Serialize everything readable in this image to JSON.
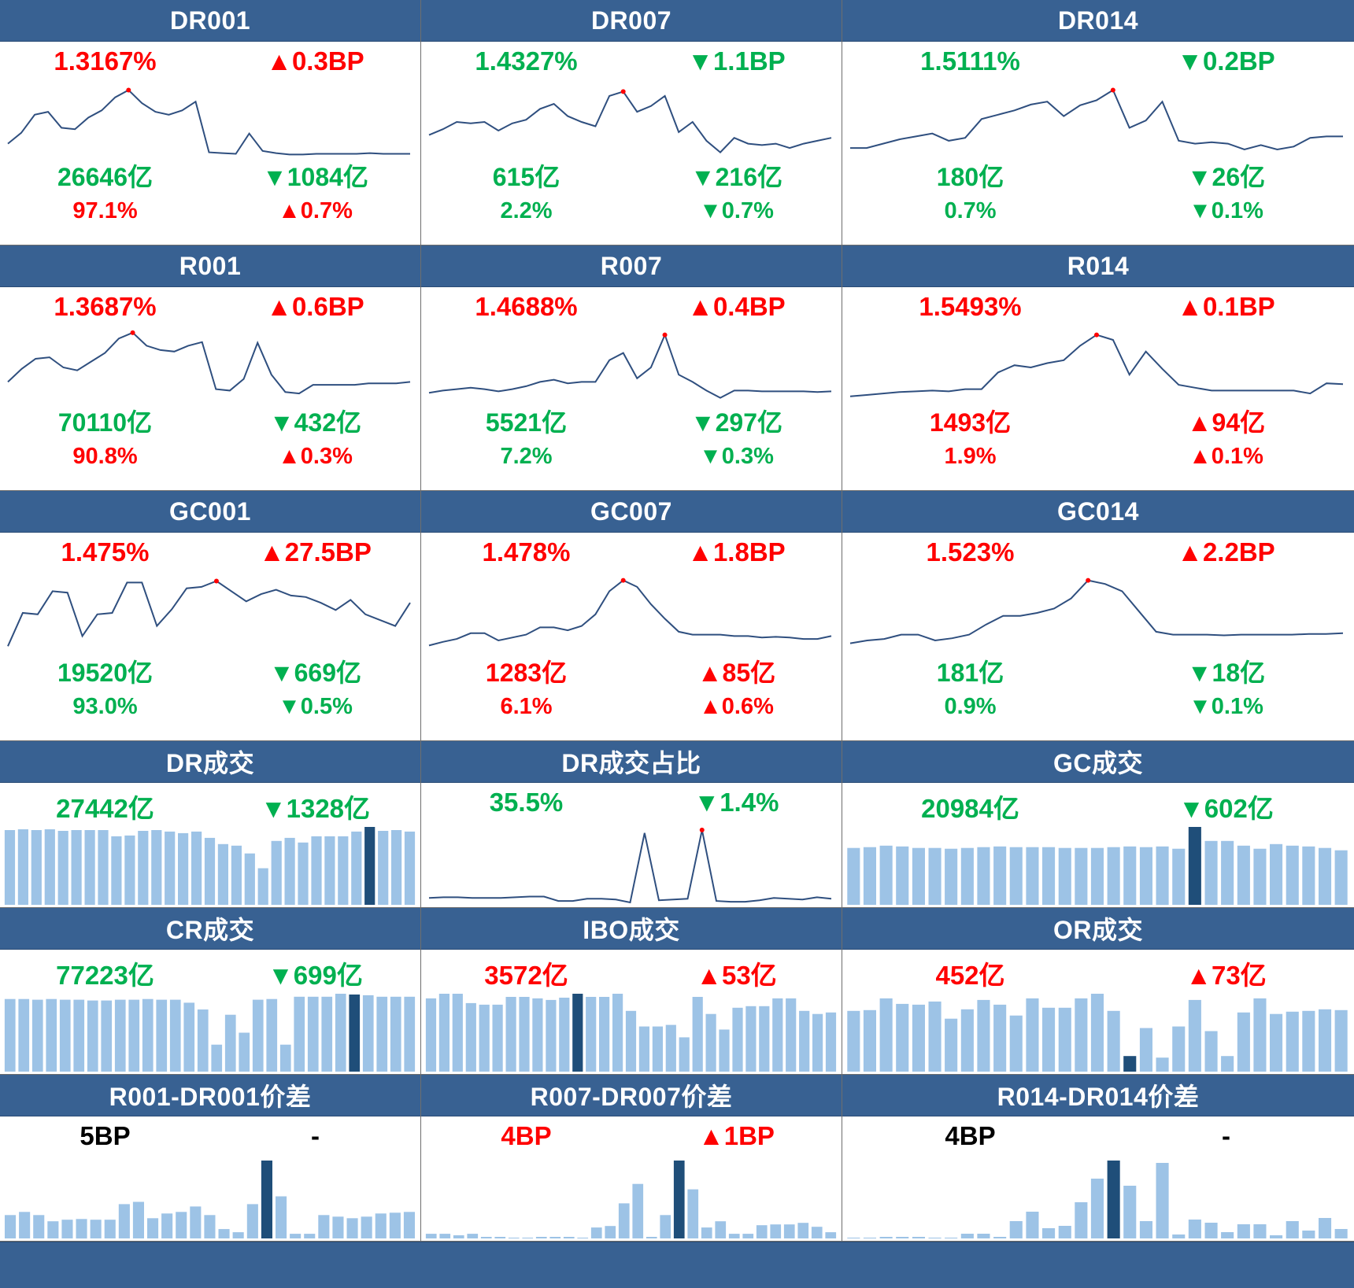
{
  "colors": {
    "header_bg": "#386192",
    "up": "#ff0000",
    "down": "#00b050",
    "line": "#2f4f7f",
    "bar": "#9dc3e6",
    "bar_highlight": "#1f4e79"
  },
  "panels": [
    {
      "id": "dr001",
      "title": "DR001",
      "kind": "rate",
      "rate": {
        "value": "1.3167%",
        "dir": "up"
      },
      "rate_chg": {
        "value": "▲0.3BP",
        "dir": "up"
      },
      "vol": {
        "value": "26646亿",
        "dir": "down"
      },
      "vol_chg": {
        "value": "▼1084亿",
        "dir": "down"
      },
      "share": {
        "value": "97.1%",
        "dir": "up"
      },
      "share_chg": {
        "value": "▲0.7%",
        "dir": "up"
      }
    },
    {
      "id": "dr007",
      "title": "DR007",
      "kind": "rate",
      "rate": {
        "value": "1.4327%",
        "dir": "down"
      },
      "rate_chg": {
        "value": "▼1.1BP",
        "dir": "down"
      },
      "vol": {
        "value": "615亿",
        "dir": "down"
      },
      "vol_chg": {
        "value": "▼216亿",
        "dir": "down"
      },
      "share": {
        "value": "2.2%",
        "dir": "down"
      },
      "share_chg": {
        "value": "▼0.7%",
        "dir": "down"
      }
    },
    {
      "id": "dr014",
      "title": "DR014",
      "kind": "rate",
      "rate": {
        "value": "1.5111%",
        "dir": "down"
      },
      "rate_chg": {
        "value": "▼0.2BP",
        "dir": "down"
      },
      "vol": {
        "value": "180亿",
        "dir": "down"
      },
      "vol_chg": {
        "value": "▼26亿",
        "dir": "down"
      },
      "share": {
        "value": "0.7%",
        "dir": "down"
      },
      "share_chg": {
        "value": "▼0.1%",
        "dir": "down"
      }
    },
    {
      "id": "r001",
      "title": "R001",
      "kind": "rate",
      "rate": {
        "value": "1.3687%",
        "dir": "up"
      },
      "rate_chg": {
        "value": "▲0.6BP",
        "dir": "up"
      },
      "vol": {
        "value": "70110亿",
        "dir": "down"
      },
      "vol_chg": {
        "value": "▼432亿",
        "dir": "down"
      },
      "share": {
        "value": "90.8%",
        "dir": "up"
      },
      "share_chg": {
        "value": "▲0.3%",
        "dir": "up"
      }
    },
    {
      "id": "r007",
      "title": "R007",
      "kind": "rate",
      "rate": {
        "value": "1.4688%",
        "dir": "up"
      },
      "rate_chg": {
        "value": "▲0.4BP",
        "dir": "up"
      },
      "vol": {
        "value": "5521亿",
        "dir": "down"
      },
      "vol_chg": {
        "value": "▼297亿",
        "dir": "down"
      },
      "share": {
        "value": "7.2%",
        "dir": "down"
      },
      "share_chg": {
        "value": "▼0.3%",
        "dir": "down"
      }
    },
    {
      "id": "r014",
      "title": "R014",
      "kind": "rate",
      "rate": {
        "value": "1.5493%",
        "dir": "up"
      },
      "rate_chg": {
        "value": "▲0.1BP",
        "dir": "up"
      },
      "vol": {
        "value": "1493亿",
        "dir": "up"
      },
      "vol_chg": {
        "value": "▲94亿",
        "dir": "up"
      },
      "share": {
        "value": "1.9%",
        "dir": "up"
      },
      "share_chg": {
        "value": "▲0.1%",
        "dir": "up"
      }
    },
    {
      "id": "gc001",
      "title": "GC001",
      "kind": "rate",
      "rate": {
        "value": "1.475%",
        "dir": "up"
      },
      "rate_chg": {
        "value": "▲27.5BP",
        "dir": "up"
      },
      "vol": {
        "value": "19520亿",
        "dir": "down"
      },
      "vol_chg": {
        "value": "▼669亿",
        "dir": "down"
      },
      "share": {
        "value": "93.0%",
        "dir": "down"
      },
      "share_chg": {
        "value": "▼0.5%",
        "dir": "down"
      }
    },
    {
      "id": "gc007",
      "title": "GC007",
      "kind": "rate",
      "rate": {
        "value": "1.478%",
        "dir": "up"
      },
      "rate_chg": {
        "value": "▲1.8BP",
        "dir": "up"
      },
      "vol": {
        "value": "1283亿",
        "dir": "up"
      },
      "vol_chg": {
        "value": "▲85亿",
        "dir": "up"
      },
      "share": {
        "value": "6.1%",
        "dir": "up"
      },
      "share_chg": {
        "value": "▲0.6%",
        "dir": "up"
      }
    },
    {
      "id": "gc014",
      "title": "GC014",
      "kind": "rate",
      "rate": {
        "value": "1.523%",
        "dir": "up"
      },
      "rate_chg": {
        "value": "▲2.2BP",
        "dir": "up"
      },
      "vol": {
        "value": "181亿",
        "dir": "down"
      },
      "vol_chg": {
        "value": "▼18亿",
        "dir": "down"
      },
      "share": {
        "value": "0.9%",
        "dir": "down"
      },
      "share_chg": {
        "value": "▼0.1%",
        "dir": "down"
      }
    },
    {
      "id": "dr_vol",
      "title": "DR成交",
      "kind": "bar",
      "main": {
        "value": "27442亿",
        "dir": "down"
      },
      "chg": {
        "value": "▼1328亿",
        "dir": "down"
      }
    },
    {
      "id": "dr_share",
      "title": "DR成交占比",
      "kind": "line",
      "main": {
        "value": "35.5%",
        "dir": "down"
      },
      "chg": {
        "value": "▼1.4%",
        "dir": "down"
      }
    },
    {
      "id": "gc_vol",
      "title": "GC成交",
      "kind": "bar",
      "main": {
        "value": "20984亿",
        "dir": "down"
      },
      "chg": {
        "value": "▼602亿",
        "dir": "down"
      }
    },
    {
      "id": "cr_vol",
      "title": "CR成交",
      "kind": "bar",
      "main": {
        "value": "77223亿",
        "dir": "down"
      },
      "chg": {
        "value": "▼699亿",
        "dir": "down"
      }
    },
    {
      "id": "ibo_vol",
      "title": "IBO成交",
      "kind": "bar",
      "main": {
        "value": "3572亿",
        "dir": "up"
      },
      "chg": {
        "value": "▲53亿",
        "dir": "up"
      }
    },
    {
      "id": "or_vol",
      "title": "OR成交",
      "kind": "bar",
      "main": {
        "value": "452亿",
        "dir": "up"
      },
      "chg": {
        "value": "▲73亿",
        "dir": "up"
      }
    },
    {
      "id": "spread1",
      "title": "R001-DR001价差",
      "kind": "bar",
      "main": {
        "value": "5BP",
        "dir": "flat"
      },
      "chg": {
        "value": "-",
        "dir": "flat"
      }
    },
    {
      "id": "spread7",
      "title": "R007-DR007价差",
      "kind": "bar",
      "main": {
        "value": "4BP",
        "dir": "up"
      },
      "chg": {
        "value": "▲1BP",
        "dir": "up"
      }
    },
    {
      "id": "spread14",
      "title": "R014-DR014价差",
      "kind": "bar",
      "main": {
        "value": "4BP",
        "dir": "flat"
      },
      "chg": {
        "value": "-",
        "dir": "flat"
      }
    }
  ],
  "chart_data": [
    {
      "panel": "dr001",
      "type": "line",
      "values": [
        0.2,
        0.35,
        0.6,
        0.64,
        0.42,
        0.4,
        0.56,
        0.66,
        0.84,
        0.94,
        0.76,
        0.64,
        0.6,
        0.66,
        0.78,
        0.08,
        0.07,
        0.06,
        0.34,
        0.1,
        0.07,
        0.05,
        0.05,
        0.06,
        0.06,
        0.06,
        0.06,
        0.07,
        0.06,
        0.06,
        0.06
      ],
      "peak_index": 9
    },
    {
      "panel": "dr007",
      "type": "line",
      "values": [
        0.32,
        0.4,
        0.5,
        0.48,
        0.5,
        0.38,
        0.48,
        0.53,
        0.68,
        0.75,
        0.58,
        0.5,
        0.44,
        0.86,
        0.92,
        0.64,
        0.72,
        0.86,
        0.36,
        0.5,
        0.24,
        0.08,
        0.28,
        0.2,
        0.18,
        0.2,
        0.14,
        0.2,
        0.24,
        0.28
      ],
      "peak_index": 14
    },
    {
      "panel": "dr014",
      "type": "line",
      "values": [
        0.14,
        0.14,
        0.2,
        0.26,
        0.3,
        0.34,
        0.24,
        0.28,
        0.54,
        0.6,
        0.66,
        0.74,
        0.78,
        0.58,
        0.73,
        0.8,
        0.94,
        0.42,
        0.52,
        0.78,
        0.24,
        0.2,
        0.22,
        0.2,
        0.12,
        0.18,
        0.12,
        0.16,
        0.28,
        0.3,
        0.3
      ],
      "peak_index": 16
    },
    {
      "panel": "r001",
      "type": "line",
      "values": [
        0.3,
        0.48,
        0.62,
        0.64,
        0.5,
        0.46,
        0.58,
        0.7,
        0.9,
        0.98,
        0.8,
        0.74,
        0.72,
        0.8,
        0.85,
        0.2,
        0.18,
        0.34,
        0.84,
        0.4,
        0.16,
        0.14,
        0.26,
        0.26,
        0.26,
        0.26,
        0.28,
        0.28,
        0.28,
        0.3
      ],
      "peak_index": 9
    },
    {
      "panel": "r007",
      "type": "line",
      "values": [
        0.15,
        0.18,
        0.2,
        0.22,
        0.2,
        0.17,
        0.2,
        0.24,
        0.3,
        0.33,
        0.28,
        0.3,
        0.3,
        0.6,
        0.7,
        0.35,
        0.5,
        0.95,
        0.4,
        0.3,
        0.18,
        0.08,
        0.18,
        0.18,
        0.17,
        0.17,
        0.17,
        0.17,
        0.16,
        0.17
      ],
      "peak_index": 17
    },
    {
      "panel": "r014",
      "type": "line",
      "values": [
        0.1,
        0.12,
        0.14,
        0.16,
        0.17,
        0.18,
        0.17,
        0.2,
        0.2,
        0.43,
        0.53,
        0.5,
        0.56,
        0.6,
        0.8,
        0.95,
        0.88,
        0.4,
        0.72,
        0.48,
        0.26,
        0.22,
        0.18,
        0.18,
        0.18,
        0.18,
        0.18,
        0.18,
        0.14,
        0.28,
        0.27
      ],
      "peak_index": 15
    },
    {
      "panel": "gc001",
      "type": "line",
      "values": [
        0.04,
        0.5,
        0.48,
        0.8,
        0.78,
        0.18,
        0.48,
        0.5,
        0.92,
        0.92,
        0.32,
        0.55,
        0.84,
        0.86,
        0.94,
        0.8,
        0.66,
        0.76,
        0.82,
        0.74,
        0.72,
        0.64,
        0.54,
        0.68,
        0.48,
        0.4,
        0.32,
        0.64
      ],
      "peak_index": 14
    },
    {
      "panel": "gc007",
      "type": "line",
      "values": [
        0.05,
        0.1,
        0.14,
        0.22,
        0.22,
        0.12,
        0.16,
        0.2,
        0.3,
        0.3,
        0.26,
        0.32,
        0.48,
        0.8,
        0.95,
        0.86,
        0.62,
        0.42,
        0.24,
        0.2,
        0.2,
        0.2,
        0.18,
        0.18,
        0.16,
        0.17,
        0.16,
        0.14,
        0.14,
        0.18
      ],
      "peak_index": 14
    },
    {
      "panel": "gc014",
      "type": "line",
      "values": [
        0.08,
        0.12,
        0.14,
        0.2,
        0.2,
        0.12,
        0.15,
        0.2,
        0.34,
        0.46,
        0.46,
        0.5,
        0.56,
        0.7,
        0.95,
        0.9,
        0.8,
        0.52,
        0.24,
        0.2,
        0.2,
        0.2,
        0.19,
        0.2,
        0.2,
        0.2,
        0.2,
        0.21,
        0.21,
        0.22
      ],
      "peak_index": 14
    },
    {
      "panel": "dr_vol",
      "type": "bar",
      "values": [
        0.96,
        0.97,
        0.96,
        0.97,
        0.95,
        0.96,
        0.96,
        0.96,
        0.88,
        0.89,
        0.95,
        0.96,
        0.94,
        0.92,
        0.94,
        0.86,
        0.78,
        0.76,
        0.66,
        0.47,
        0.82,
        0.86,
        0.8,
        0.88,
        0.88,
        0.88,
        0.94,
        1.0,
        0.95,
        0.96,
        0.94
      ],
      "highlight_index": 27
    },
    {
      "panel": "dr_share",
      "type": "line",
      "values": [
        0.07,
        0.08,
        0.08,
        0.07,
        0.07,
        0.07,
        0.08,
        0.09,
        0.09,
        0.03,
        0.03,
        0.06,
        0.06,
        0.05,
        0.01,
        0.94,
        0.04,
        0.05,
        0.06,
        0.98,
        0.03,
        0.02,
        0.02,
        0.04,
        0.07,
        0.06,
        0.05,
        0.08,
        0.06
      ],
      "peak_index": 19
    },
    {
      "panel": "gc_vol",
      "type": "bar",
      "values": [
        0.73,
        0.74,
        0.76,
        0.75,
        0.73,
        0.73,
        0.72,
        0.73,
        0.74,
        0.75,
        0.74,
        0.74,
        0.74,
        0.73,
        0.73,
        0.73,
        0.74,
        0.75,
        0.74,
        0.75,
        0.72,
        1.0,
        0.82,
        0.82,
        0.76,
        0.72,
        0.78,
        0.76,
        0.75,
        0.73,
        0.7
      ],
      "highlight_index": 21
    },
    {
      "panel": "cr_vol",
      "type": "bar",
      "values": [
        0.97,
        0.97,
        0.96,
        0.97,
        0.96,
        0.96,
        0.95,
        0.95,
        0.96,
        0.96,
        0.97,
        0.96,
        0.96,
        0.92,
        0.83,
        0.36,
        0.76,
        0.52,
        0.96,
        0.97,
        0.36,
        1.0,
        1.0,
        1.0,
        1.04,
        1.03,
        1.02,
        1.0,
        1.0,
        1.0
      ],
      "highlight_index": 25
    },
    {
      "panel": "ibo_vol",
      "type": "bar",
      "values": [
        0.94,
        1.0,
        1.0,
        0.88,
        0.86,
        0.86,
        0.96,
        0.96,
        0.94,
        0.92,
        0.95,
        1.0,
        0.96,
        0.96,
        1.0,
        0.78,
        0.58,
        0.58,
        0.6,
        0.44,
        0.96,
        0.74,
        0.54,
        0.82,
        0.84,
        0.84,
        0.94,
        0.94,
        0.78,
        0.74,
        0.76
      ],
      "highlight_index": 11
    },
    {
      "panel": "or_vol",
      "type": "bar",
      "values": [
        0.78,
        0.79,
        0.94,
        0.87,
        0.86,
        0.9,
        0.68,
        0.8,
        0.92,
        0.86,
        0.72,
        0.94,
        0.82,
        0.82,
        0.94,
        1.0,
        0.78,
        0.2,
        0.56,
        0.18,
        0.58,
        0.92,
        0.52,
        0.2,
        0.76,
        0.94,
        0.74,
        0.77,
        0.78,
        0.8,
        0.79
      ],
      "highlight_index": 17
    },
    {
      "panel": "spread1",
      "type": "bar",
      "values": [
        0.3,
        0.34,
        0.3,
        0.22,
        0.24,
        0.25,
        0.24,
        0.24,
        0.44,
        0.47,
        0.26,
        0.32,
        0.34,
        0.41,
        0.3,
        0.12,
        0.08,
        0.44,
        1.0,
        0.54,
        0.06,
        0.06,
        0.3,
        0.28,
        0.26,
        0.28,
        0.32,
        0.33,
        0.34
      ],
      "highlight_index": 18
    },
    {
      "panel": "spread7",
      "type": "bar",
      "values": [
        0.06,
        0.06,
        0.04,
        0.06,
        0.02,
        0.02,
        0.01,
        0.01,
        0.02,
        0.02,
        0.02,
        0.01,
        0.14,
        0.16,
        0.45,
        0.7,
        0.02,
        0.3,
        1.0,
        0.63,
        0.14,
        0.22,
        0.06,
        0.06,
        0.17,
        0.18,
        0.18,
        0.2,
        0.15,
        0.08
      ],
      "highlight_index": 18
    },
    {
      "panel": "spread14",
      "type": "bar",
      "values": [
        0.01,
        0.01,
        0.02,
        0.02,
        0.02,
        0.01,
        0.01,
        0.06,
        0.06,
        0.02,
        0.22,
        0.34,
        0.13,
        0.16,
        0.46,
        0.76,
        0.99,
        0.67,
        0.22,
        0.96,
        0.05,
        0.24,
        0.2,
        0.08,
        0.18,
        0.18,
        0.04,
        0.22,
        0.1,
        0.26,
        0.12
      ],
      "highlight_index": 16
    }
  ]
}
